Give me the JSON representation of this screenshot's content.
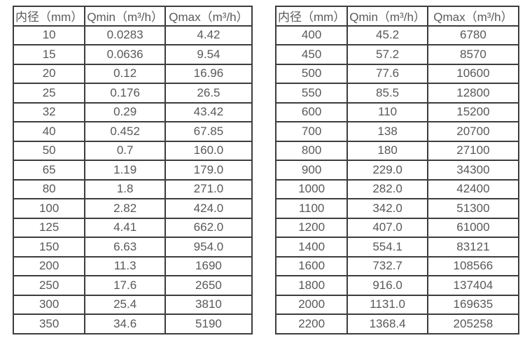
{
  "colors": {
    "background": "#ffffff",
    "border": "#3d3d3d",
    "text": "#595959"
  },
  "tables": [
    {
      "name": "flow-spec-table-small-diameters",
      "headers": [
        "内径（mm）",
        "Qmin（m³/h）",
        "Qmax（m³/h）"
      ],
      "rows": [
        [
          "10",
          "0.0283",
          "4.42"
        ],
        [
          "15",
          "0.0636",
          "9.54"
        ],
        [
          "20",
          "0.12",
          "16.96"
        ],
        [
          "25",
          "0.176",
          "26.5"
        ],
        [
          "32",
          "0.29",
          "43.42"
        ],
        [
          "40",
          "0.452",
          "67.85"
        ],
        [
          "50",
          "0.7",
          "160.0"
        ],
        [
          "65",
          "1.19",
          "179.0"
        ],
        [
          "80",
          "1.8",
          "271.0"
        ],
        [
          "100",
          "2.82",
          "424.0"
        ],
        [
          "125",
          "4.41",
          "662.0"
        ],
        [
          "150",
          "6.63",
          "954.0"
        ],
        [
          "200",
          "11.3",
          "1690"
        ],
        [
          "250",
          "17.6",
          "2650"
        ],
        [
          "300",
          "25.4",
          "3810"
        ],
        [
          "350",
          "34.6",
          "5190"
        ]
      ]
    },
    {
      "name": "flow-spec-table-large-diameters",
      "headers": [
        "内径（mm）",
        "Qmin（m³/h）",
        "Qmax（m³/h）"
      ],
      "rows": [
        [
          "400",
          "45.2",
          "6780"
        ],
        [
          "450",
          "57.2",
          "8570"
        ],
        [
          "500",
          "77.6",
          "10600"
        ],
        [
          "550",
          "85.5",
          "12800"
        ],
        [
          "600",
          "110",
          "15200"
        ],
        [
          "700",
          "138",
          "20700"
        ],
        [
          "800",
          "180",
          "27100"
        ],
        [
          "900",
          "229.0",
          "34300"
        ],
        [
          "1000",
          "282.0",
          "42400"
        ],
        [
          "1100",
          "342.0",
          "51300"
        ],
        [
          "1200",
          "407.0",
          "61000"
        ],
        [
          "1400",
          "554.1",
          "83121"
        ],
        [
          "1600",
          "732.7",
          "108566"
        ],
        [
          "1800",
          "916.0",
          "137404"
        ],
        [
          "2000",
          "1131.0",
          "169635"
        ],
        [
          "2200",
          "1368.4",
          "205258"
        ]
      ]
    }
  ]
}
